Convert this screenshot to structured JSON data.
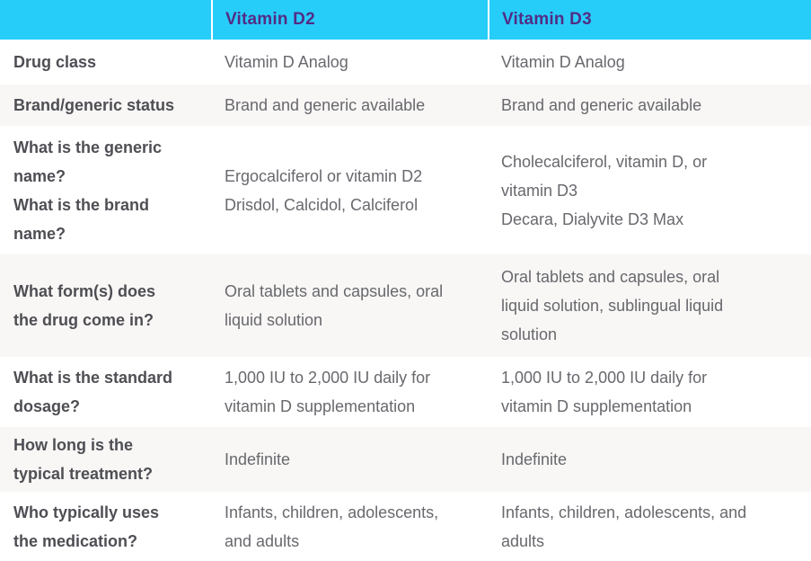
{
  "table": {
    "columns": [
      "",
      "Vitamin D2",
      "Vitamin D3"
    ],
    "rows": [
      {
        "label": "Drug class",
        "d2": "Vitamin D Analog",
        "d3": "Vitamin D Analog"
      },
      {
        "label": "Brand/generic status",
        "d2": "Brand and generic available",
        "d3": "Brand and generic available"
      },
      {
        "label": [
          "What is the generic name?",
          "What is the brand name?"
        ],
        "d2": [
          "Ergocalciferol or vitamin D2",
          "Drisdol, Calcidol, Calciferol"
        ],
        "d3": [
          "Cholecalciferol, vitamin D, or vitamin D3",
          "Decara, Dialyvite D3 Max"
        ]
      },
      {
        "label": "What form(s) does the drug come in?",
        "d2": "Oral tablets and capsules, oral liquid solution",
        "d3": "Oral tablets and capsules, oral liquid solution, sublingual liquid solution"
      },
      {
        "label": "What is the standard dosage?",
        "d2": "1,000 IU to 2,000 IU daily for vitamin D supplementation",
        "d3": "1,000 IU to 2,000 IU daily for vitamin D supplementation"
      },
      {
        "label": "How long is the typical treatment?",
        "d2": "Indefinite",
        "d3": "Indefinite"
      },
      {
        "label": "Who typically uses the medication?",
        "d2": "Infants, children, adolescents, and adults",
        "d3": "Infants, children, adolescents, and adults"
      }
    ]
  },
  "colors": {
    "header_background": "#27CDF9",
    "header_text": "#522D86",
    "alt_row_background": "#F8F7F5",
    "row_background": "#FFFFFF",
    "label_text": "#4E4E54",
    "cell_text": "#68686E",
    "header_divider": "#FFFFFF"
  }
}
